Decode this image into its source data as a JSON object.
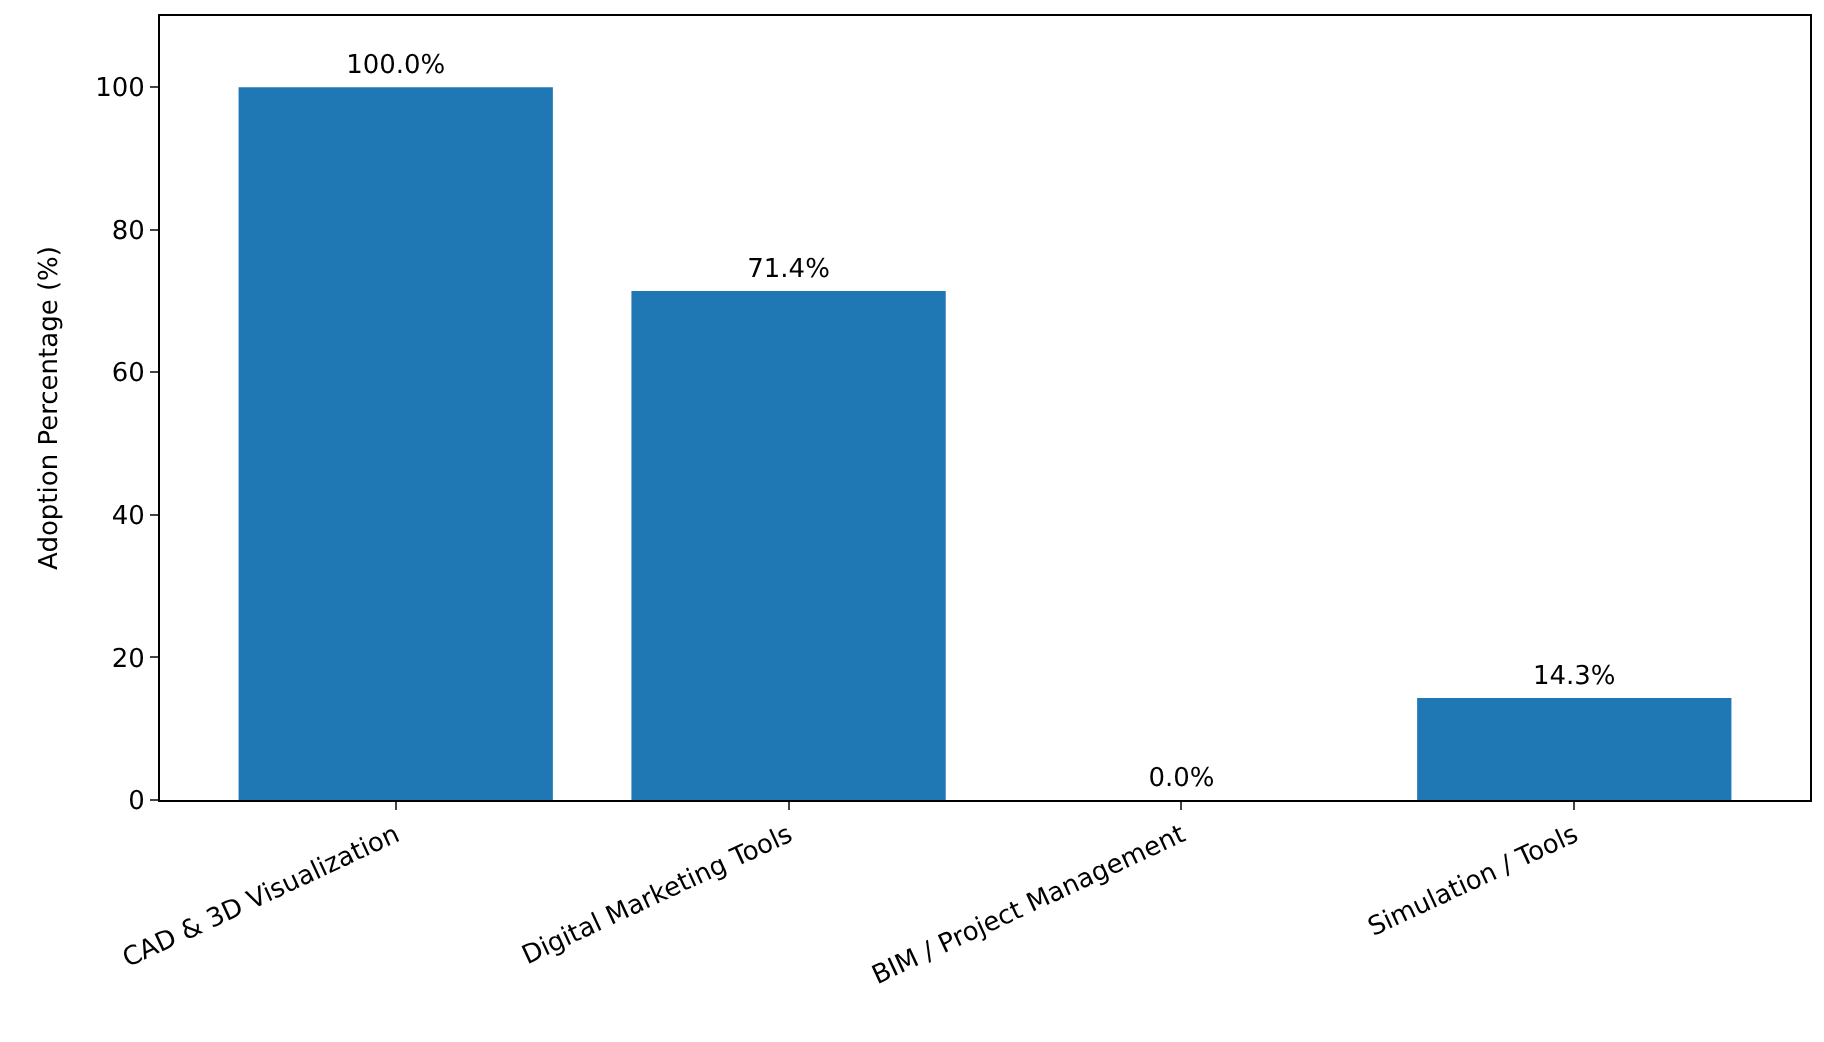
{
  "chart_data": {
    "type": "bar",
    "ylabel": "Adoption Percentage (%)",
    "categories": [
      "CAD & 3D Visualization",
      "Digital Marketing Tools",
      "BIM / Project Management",
      "Simulation / Tools"
    ],
    "values": [
      100.0,
      71.4,
      0.0,
      14.3
    ],
    "value_labels": [
      "100.0%",
      "71.4%",
      "0.0%",
      "14.3%"
    ],
    "color": "#1f77b4",
    "ylim": [
      0,
      110
    ],
    "yticks": [
      0,
      20,
      40,
      60,
      80,
      100
    ]
  }
}
